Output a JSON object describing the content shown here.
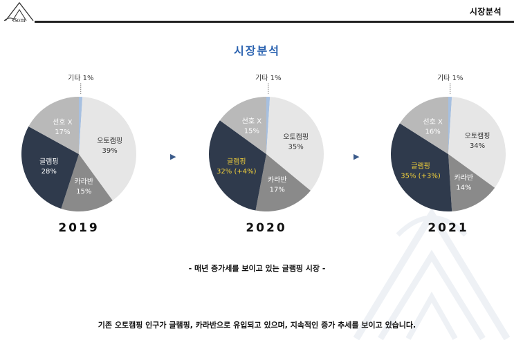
{
  "header": {
    "title": "시장분석"
  },
  "page": {
    "title": "시장분석",
    "subtitle": "- 매년 증가세를 보이고 있는 글램핑 시장 -",
    "footer_text": "기존 오토캠핑 인구가 글램핑, 카라반으로 유입되고 있으며, 지속적인 증가 추세를 보이고 있습니다."
  },
  "colors": {
    "auto_camping": "#e6e6e6",
    "caravan": "#8a8a8a",
    "glamping": "#2f3a4c",
    "non_preference": "#b9b9b9",
    "other": "#a7c0e0",
    "accent_title": "#2a62b0",
    "glamping_highlight_text": "#f4d23a"
  },
  "icons": {
    "logo": "tent-logo-icon",
    "arrow": "right-triangle-arrow-icon",
    "watermark": "tent-watermark-icon"
  },
  "chart_data": [
    {
      "type": "pie",
      "title": "2019",
      "slices": [
        {
          "label": "기타",
          "value": 1,
          "text": "1%",
          "color": "#a7c0e0"
        },
        {
          "label": "오토캠핑",
          "value": 39,
          "text": "39%",
          "color": "#e6e6e6"
        },
        {
          "label": "카라반",
          "value": 15,
          "text": "15%",
          "color": "#8a8a8a"
        },
        {
          "label": "글램핑",
          "value": 28,
          "text": "28%",
          "color": "#2f3a4c"
        },
        {
          "label": "선호 X",
          "value": 17,
          "text": "17%",
          "color": "#b9b9b9"
        }
      ]
    },
    {
      "type": "pie",
      "title": "2020",
      "slices": [
        {
          "label": "기타",
          "value": 1,
          "text": "1%",
          "color": "#a7c0e0"
        },
        {
          "label": "오토캠핑",
          "value": 35,
          "text": "35%",
          "color": "#e6e6e6"
        },
        {
          "label": "카라반",
          "value": 17,
          "text": "17%",
          "color": "#8a8a8a"
        },
        {
          "label": "글램핑",
          "value": 32,
          "text": "32% (+4%)",
          "color": "#2f3a4c"
        },
        {
          "label": "선호 X",
          "value": 15,
          "text": "15%",
          "color": "#b9b9b9"
        }
      ]
    },
    {
      "type": "pie",
      "title": "2021",
      "slices": [
        {
          "label": "기타",
          "value": 1,
          "text": "1%",
          "color": "#a7c0e0"
        },
        {
          "label": "오토캠핑",
          "value": 34,
          "text": "34%",
          "color": "#e6e6e6"
        },
        {
          "label": "카라반",
          "value": 14,
          "text": "14%",
          "color": "#8a8a8a"
        },
        {
          "label": "글램핑",
          "value": 35,
          "text": "35% (+3%)",
          "color": "#2f3a4c"
        },
        {
          "label": "선호 X",
          "value": 16,
          "text": "16%",
          "color": "#b9b9b9"
        }
      ]
    }
  ]
}
